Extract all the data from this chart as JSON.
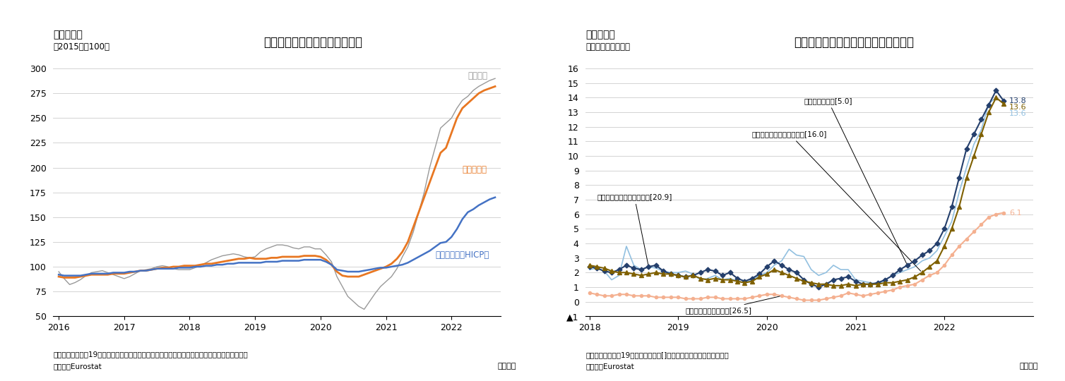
{
  "chart3": {
    "title": "ユーロ圈のエネルギー価格水準",
    "subtitle_left": "（図表３）",
    "ylabel": "（2015年＝100）",
    "note1": "（注）ユーロ圈は19か国のデータ、生産者物価は域内市場、輸入物価は電気・ガス・水道を除く",
    "note2": "（資料）Eurostat",
    "monthly_label": "（月次）",
    "ylim": [
      50,
      300
    ],
    "yticks": [
      50,
      75,
      100,
      125,
      150,
      175,
      200,
      225,
      250,
      275,
      300
    ],
    "xtick_years": [
      "2016",
      "2017",
      "2018",
      "2019",
      "2020",
      "2021",
      "2022"
    ],
    "import_label": "輸入物価",
    "import_color": "#999999",
    "producer_label": "生産者物価",
    "producer_color": "#E87722",
    "consumer_label": "消費者物価（HICP）",
    "consumer_color": "#4472C4"
  },
  "chart4": {
    "title": "ユーロ圈の飲食料価格の上昇率と内訳",
    "subtitle_left": "（図表４）",
    "ylabel": "（前年同月比、％）",
    "note1": "（注）ユーロ圈は19か国のデータ、[]内は総合指数に対するウェイト",
    "note2": "（資料）Eurostat",
    "monthly_label": "（月次）",
    "ylim": [
      -1,
      16
    ],
    "yticks": [
      -1,
      0,
      1,
      2,
      3,
      4,
      5,
      6,
      7,
      8,
      9,
      10,
      11,
      12,
      13,
      14,
      15,
      16
    ],
    "ytick_labels": [
      "▲1",
      "0",
      "1",
      "2",
      "3",
      "4",
      "5",
      "6",
      "7",
      "8",
      "9",
      "10",
      "11",
      "12",
      "13",
      "14",
      "15",
      "16"
    ],
    "xtick_years": [
      "2018",
      "2019",
      "2020",
      "2021",
      "2022"
    ],
    "food_label": "飲食料（アルコール含む）[20.9]",
    "food_color": "#92C0E0",
    "unpro_label": "うち未加工食品[5.0]",
    "unpro_color": "#243F6C",
    "proc_label": "うち加工食品・アルコール[16.0]",
    "proc_color": "#7F6000",
    "goods_label": "財（エネルギー除く）[26.5]",
    "goods_color": "#F4B090",
    "end_unpro": "13.8",
    "end_proc": "13.6",
    "end_food": "13.6",
    "end_goods": "6.1"
  }
}
